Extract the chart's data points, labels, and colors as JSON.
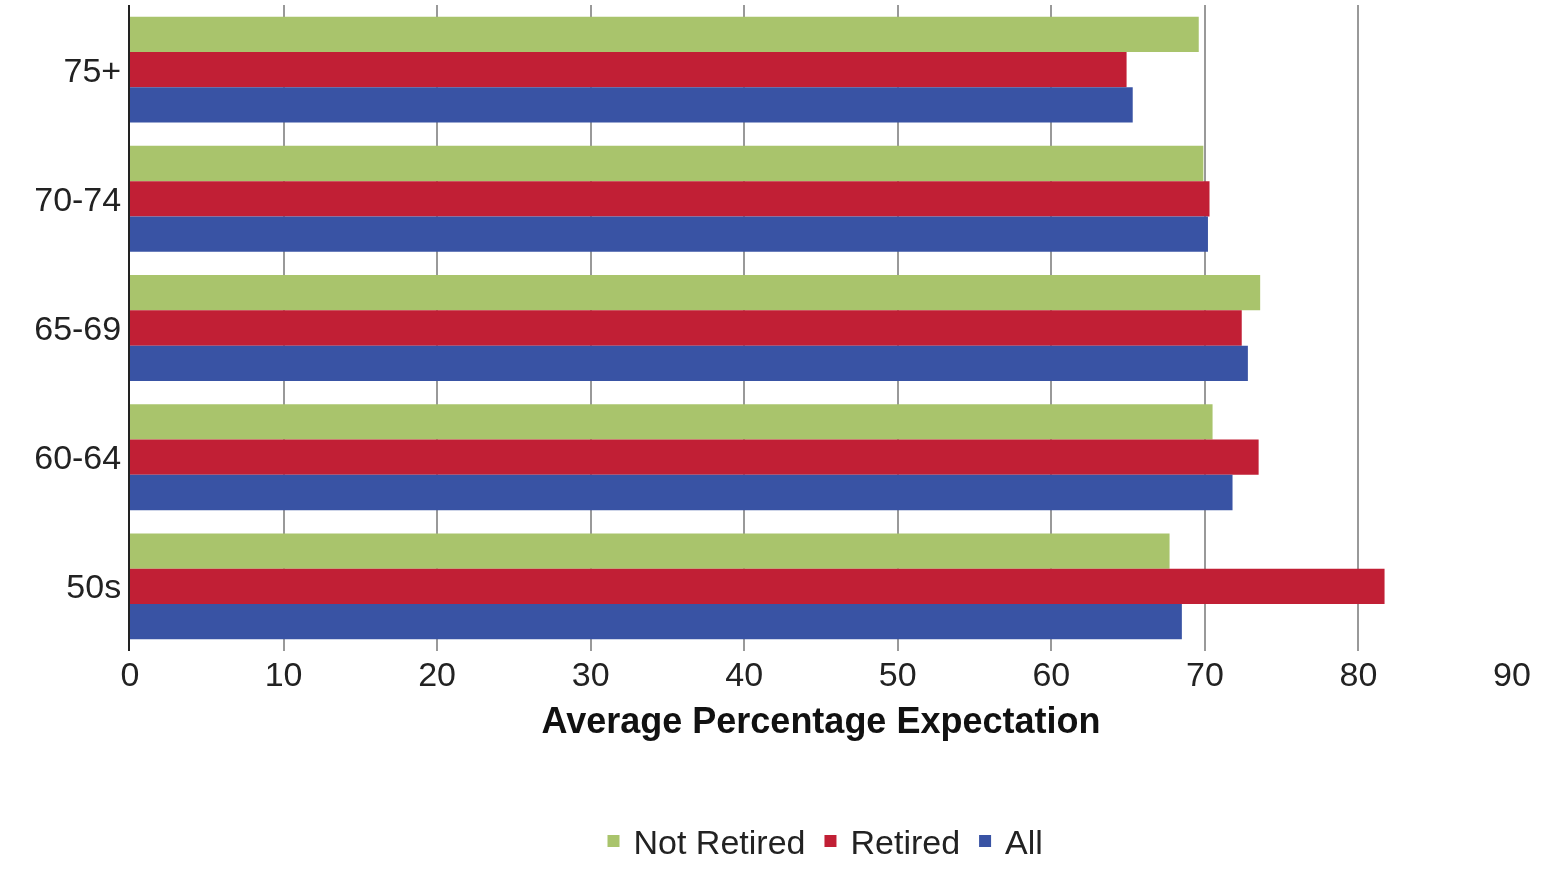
{
  "chart_data": {
    "type": "bar",
    "orientation": "horizontal",
    "xlabel": "Average Percentage Expectation",
    "categories": [
      "75+",
      "70-74",
      "65-69",
      "60-64",
      "50s"
    ],
    "series": [
      {
        "name": "Not Retired",
        "color": "#a9c46c",
        "values": [
          69.6,
          69.9,
          73.6,
          70.5,
          67.7
        ]
      },
      {
        "name": "Retired",
        "color": "#c11f35",
        "values": [
          64.9,
          70.3,
          72.4,
          73.5,
          81.7
        ]
      },
      {
        "name": "All",
        "color": "#3953a4",
        "values": [
          65.3,
          70.2,
          72.8,
          71.8,
          68.5
        ]
      }
    ],
    "xlim": [
      0,
      90
    ],
    "xticks": [
      0,
      10,
      20,
      30,
      40,
      50,
      60,
      70,
      80,
      90
    ],
    "grid": "x",
    "legend": "bottom"
  }
}
